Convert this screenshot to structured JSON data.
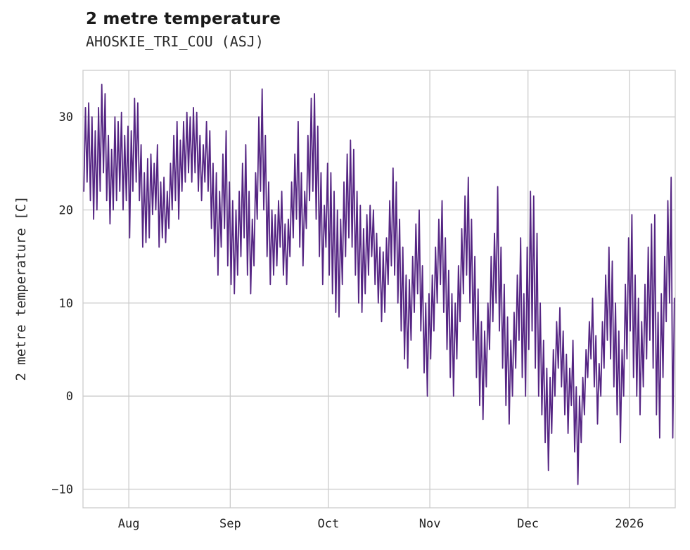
{
  "chart_data": {
    "type": "line",
    "title": "2 metre temperature",
    "subtitle": "AHOSKIE_TRI_COU (ASJ)",
    "ylabel": "2 metre temperature [C]",
    "xlabel": "",
    "line_color": "#552583",
    "grid_color": "#cccccc",
    "background": "#ffffff",
    "legend": "none",
    "grid": "on",
    "ylim": [
      -12,
      35
    ],
    "x_span_days": 181,
    "samples_per_day": 2,
    "yticks": [
      {
        "value": -10,
        "label": "−10"
      },
      {
        "value": 0,
        "label": "0"
      },
      {
        "value": 10,
        "label": "10"
      },
      {
        "value": 20,
        "label": "20"
      },
      {
        "value": 30,
        "label": "30"
      }
    ],
    "xticks": [
      {
        "day": 14,
        "label": "Aug"
      },
      {
        "day": 45,
        "label": "Sep"
      },
      {
        "day": 75,
        "label": "Oct"
      },
      {
        "day": 106,
        "label": "Nov"
      },
      {
        "day": 136,
        "label": "Dec"
      },
      {
        "day": 167,
        "label": "2026"
      }
    ],
    "values": [
      22,
      31,
      23,
      31.5,
      21,
      30,
      19,
      28.5,
      20,
      31,
      22,
      33.5,
      24,
      32.5,
      21,
      28,
      18.5,
      26.5,
      20,
      30,
      21,
      29.5,
      22,
      30.5,
      20,
      28,
      21,
      29,
      17,
      28.5,
      22,
      32,
      23,
      31.5,
      21,
      27,
      16,
      24,
      16.5,
      25.5,
      17,
      26,
      19.5,
      25,
      20,
      27,
      16,
      23,
      17,
      23.5,
      16.5,
      22,
      18,
      25,
      20,
      28,
      21,
      29.5,
      19,
      27.5,
      22,
      29.5,
      23,
      30.5,
      24,
      30,
      23,
      31,
      24,
      30.5,
      22,
      28,
      21,
      27,
      23,
      29.5,
      22,
      28.5,
      18,
      25,
      15,
      24,
      13,
      22,
      16,
      26,
      18,
      28.5,
      14,
      23,
      12,
      21,
      11,
      20,
      13,
      22,
      15,
      25,
      17,
      27,
      13,
      22,
      11,
      19,
      14,
      24,
      19,
      30,
      22,
      33,
      20,
      28,
      15,
      23,
      12,
      20,
      13,
      19.5,
      14,
      21,
      16,
      22,
      13,
      18.5,
      12,
      19,
      15,
      23,
      17,
      26,
      19,
      29.5,
      16,
      24,
      14,
      22,
      18,
      28,
      21,
      32,
      22,
      32.5,
      19,
      29,
      15,
      24,
      12,
      20.5,
      16,
      25,
      13,
      24,
      11,
      22,
      9,
      20,
      8.5,
      19,
      12,
      23,
      15,
      26,
      17,
      27.5,
      16,
      26.5,
      13,
      22,
      10,
      20.5,
      9,
      18,
      11,
      19.5,
      13,
      20.5,
      15,
      20,
      12,
      17.5,
      10,
      16,
      8,
      15.5,
      9,
      17,
      12,
      21,
      14,
      24.5,
      13,
      23,
      10,
      19,
      7,
      16,
      4,
      13,
      3,
      12.5,
      6,
      15,
      9,
      18.5,
      11,
      20,
      7,
      14,
      2.5,
      10,
      0,
      11,
      4,
      13,
      7,
      16,
      10,
      19,
      12,
      21,
      9,
      17,
      5,
      13.5,
      2,
      11,
      0,
      10,
      4,
      14,
      8,
      18,
      11,
      21.5,
      13,
      23.5,
      10,
      19,
      6,
      15,
      2,
      11.5,
      -1,
      8,
      -2.5,
      7,
      1,
      10,
      5,
      15,
      8,
      17.5,
      10,
      22.5,
      7,
      16,
      3,
      12,
      -1,
      8.5,
      -3,
      6,
      0,
      9,
      3,
      13,
      6,
      17,
      2,
      11,
      0,
      16,
      5,
      22,
      7,
      21.5,
      3,
      17.5,
      0,
      10,
      -2,
      6,
      -5,
      3,
      -8,
      2,
      -4,
      5,
      0,
      8,
      3,
      9.5,
      1,
      7,
      -2,
      4.5,
      -4,
      3,
      -1,
      6,
      -6,
      1,
      -9.5,
      0,
      -5,
      2,
      -2,
      5,
      2,
      8,
      4,
      10.5,
      1,
      6.5,
      -3,
      3.5,
      0,
      8,
      3,
      13,
      6,
      16,
      4,
      14.5,
      1,
      10,
      -2,
      7,
      -5,
      5,
      0,
      12,
      4,
      17,
      7,
      19.5,
      2,
      13,
      0,
      10.5,
      -2,
      8,
      1,
      12,
      4,
      16,
      6,
      18.5,
      3,
      19.5,
      -2,
      9,
      -4.5,
      11,
      2,
      15,
      8,
      21,
      10,
      23.5,
      -4.5,
      10.5
    ]
  }
}
